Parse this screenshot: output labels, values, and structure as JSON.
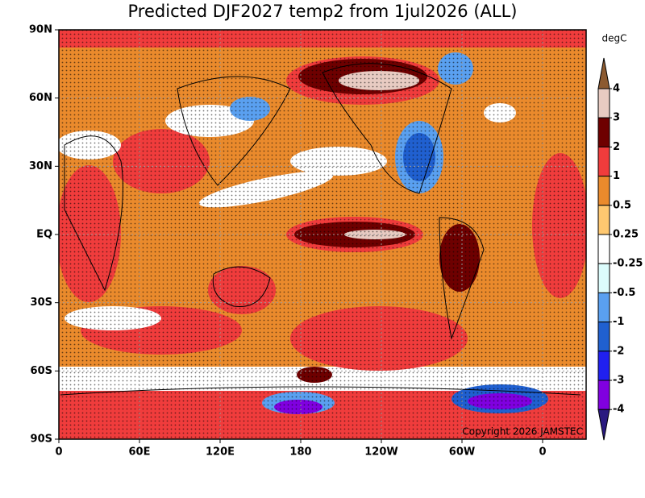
{
  "title": "Predicted DJF2027 temp2 from 1jul2026 (ALL)",
  "map": {
    "lat_labels": [
      "90N",
      "60N",
      "30N",
      "EQ",
      "30S",
      "60S",
      "90S"
    ],
    "lon_labels": [
      "0",
      "60E",
      "120E",
      "180",
      "120W",
      "60W",
      "0"
    ],
    "copyright": "Copyright 2026 JAMSTEC"
  },
  "colorbar": {
    "unit": "degC",
    "levels": [
      4,
      3,
      2,
      1,
      0.5,
      0.25,
      -0.25,
      -0.5,
      -1,
      -2,
      -3,
      -4
    ],
    "colors": [
      "#8c5a30",
      "#e8cbc2",
      "#6e0000",
      "#f03c3c",
      "#ea8a2c",
      "#ffc870",
      "#ffffff",
      "#dcfcfc",
      "#5aa0f0",
      "#2060d0",
      "#2020f0",
      "#8000e0",
      "#2a1a80"
    ]
  }
}
